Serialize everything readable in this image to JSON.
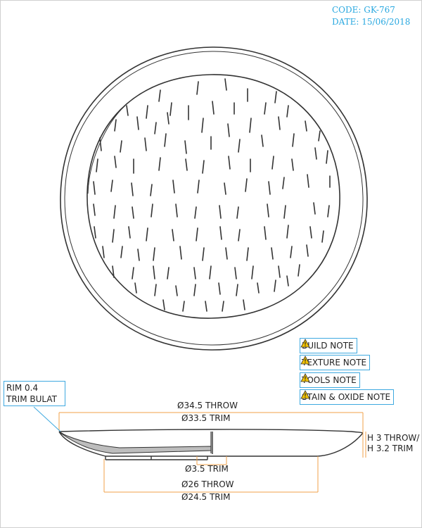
{
  "header": {
    "code": "CODE: GK-767",
    "date": "DATE: 15/06/2018"
  },
  "notes": [
    {
      "label": "BUILD NOTE",
      "icon": "warning-icon"
    },
    {
      "label": "TEXTURE NOTE",
      "icon": "warning-icon"
    },
    {
      "label": "TOOLS NOTE",
      "icon": "warning-icon"
    },
    {
      "label": "STAIN & OXIDE NOTE",
      "icon": "warning-icon"
    }
  ],
  "rim_callout": {
    "line1": "RIM 0.4",
    "line2": "TRIM BULAT"
  },
  "dimensions": {
    "outer_throw": "Ø34.5 THROW",
    "outer_trim": "Ø33.5 TRIM",
    "height_throw": "H 3 THROW/",
    "height_trim": "H 3.2 TRIM",
    "foot_trim": "Ø3.5 TRIM",
    "base_throw": "Ø26 THROW",
    "base_trim": "Ø24.5 TRIM"
  },
  "colors": {
    "accent": "#29a8e0",
    "dimension_line": "#f0a24a",
    "outline": "#333333",
    "warning": "#f2c200"
  }
}
